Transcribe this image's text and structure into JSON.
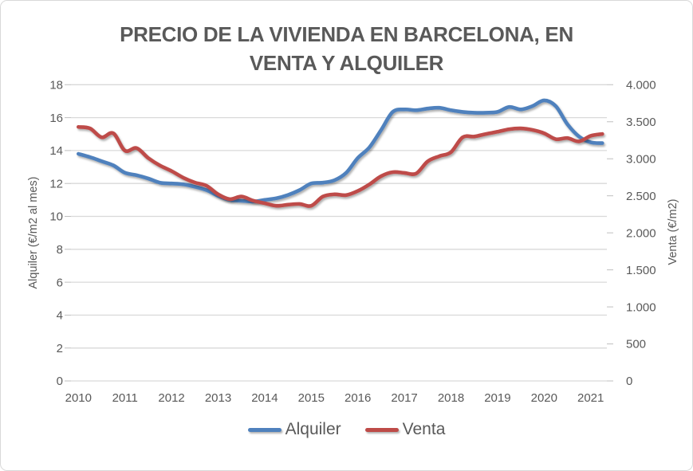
{
  "chart": {
    "title_line1": "PRECIO DE LA VIVIENDA EN BARCELONA, EN",
    "title_line2": "VENTA Y ALQUILER",
    "text_color": "#595959",
    "gridline_color": "#d9d9d9",
    "tick_color": "#bfbfbf",
    "background": "#ffffff",
    "border_color": "#d9d9d9"
  },
  "chart_data": {
    "type": "line",
    "title": "PRECIO DE LA VIVIENDA EN BARCELONA, EN VENTA Y ALQUILER",
    "x_unit": "quarter",
    "categories": [
      "2010T1",
      "2010T2",
      "2010T3",
      "2010T4",
      "2011T1",
      "2011T2",
      "2011T3",
      "2011T4",
      "2012T1",
      "2012T2",
      "2012T3",
      "2012T4",
      "2013T1",
      "2013T2",
      "2013T3",
      "2013T4",
      "2014T1",
      "2014T2",
      "2014T3",
      "2014T4",
      "2015T1",
      "2015T2",
      "2015T3",
      "2015T4",
      "2016T1",
      "2016T2",
      "2016T3",
      "2016T4",
      "2017T1",
      "2017T2",
      "2017T3",
      "2017T4",
      "2018T1",
      "2018T2",
      "2018T3",
      "2018T4",
      "2019T1",
      "2019T2",
      "2019T3",
      "2019T4",
      "2020T1",
      "2020T2",
      "2020T3",
      "2020T4",
      "2021T1",
      "2021T2"
    ],
    "x_tick_labels": [
      "2010",
      "2011",
      "2012",
      "2013",
      "2014",
      "2015",
      "2016",
      "2017",
      "2018",
      "2019",
      "2020",
      "2021"
    ],
    "series": [
      {
        "name": "Alquiler",
        "axis": "left",
        "color": "#4f81bd",
        "values": [
          13.8,
          13.6,
          13.35,
          13.1,
          12.65,
          12.5,
          12.3,
          12.05,
          12.0,
          11.95,
          11.8,
          11.6,
          11.25,
          11.0,
          10.95,
          10.9,
          11.0,
          11.1,
          11.3,
          11.6,
          12.0,
          12.05,
          12.2,
          12.65,
          13.55,
          14.2,
          15.25,
          16.35,
          16.5,
          16.45,
          16.55,
          16.6,
          16.45,
          16.35,
          16.3,
          16.3,
          16.35,
          16.65,
          16.5,
          16.7,
          17.05,
          16.7,
          15.6,
          14.85,
          14.5,
          14.45
        ]
      },
      {
        "name": "Venta",
        "axis": "right",
        "color": "#be4b48",
        "values": [
          3430,
          3410,
          3290,
          3345,
          3110,
          3145,
          3010,
          2910,
          2835,
          2745,
          2680,
          2635,
          2520,
          2455,
          2490,
          2435,
          2400,
          2365,
          2380,
          2390,
          2365,
          2490,
          2520,
          2510,
          2565,
          2655,
          2765,
          2820,
          2810,
          2800,
          2965,
          3035,
          3090,
          3290,
          3300,
          3335,
          3365,
          3400,
          3410,
          3390,
          3345,
          3265,
          3280,
          3235,
          3310,
          3335
        ]
      }
    ],
    "left_axis": {
      "title": "Alquiler (€/m2 al mes)",
      "min": 0,
      "max": 18,
      "step": 2,
      "tick_labels": [
        "0",
        "2",
        "4",
        "6",
        "8",
        "10",
        "12",
        "14",
        "16",
        "18"
      ]
    },
    "right_axis": {
      "title": "Venta (€/m2)",
      "min": 0,
      "max": 4000,
      "step": 500,
      "tick_labels": [
        "0",
        "500",
        "1.000",
        "1.500",
        "2.000",
        "2.500",
        "3.000",
        "3.500",
        "4.000"
      ]
    },
    "legend": {
      "position": "bottom",
      "entries": [
        "Alquiler",
        "Venta"
      ]
    },
    "grid": "horizontal"
  }
}
